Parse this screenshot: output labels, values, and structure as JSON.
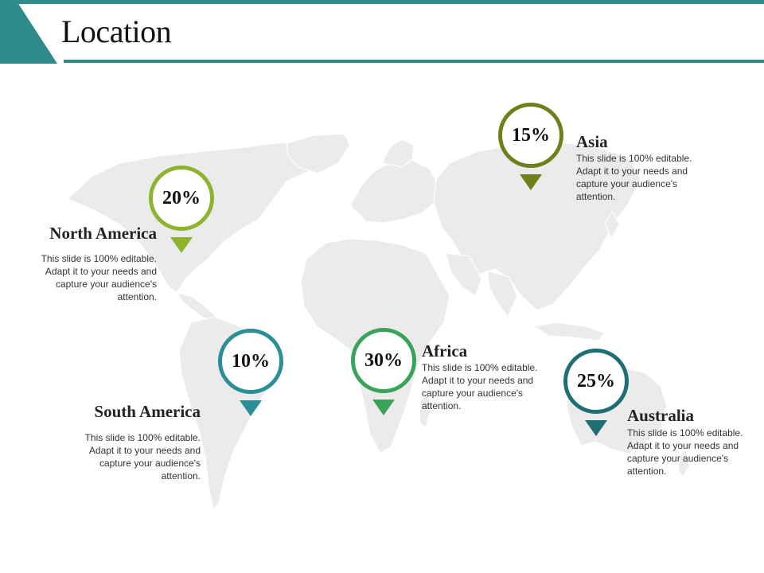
{
  "title": "Location",
  "colors": {
    "accent": "#2e8b8b",
    "north_america": "#8db32f",
    "asia": "#6f7f1a",
    "south_america": "#2a8f96",
    "africa": "#3aa35a",
    "australia": "#1e6e73",
    "map_land": "#ebebeb",
    "map_border": "#ffffff"
  },
  "regions": [
    {
      "id": "north_america",
      "name": "North America",
      "percent": "20%",
      "description": "This slide is 100% editable. Adapt it to your needs and capture your audience's attention."
    },
    {
      "id": "south_america",
      "name": "South America",
      "percent": "10%",
      "description": "This slide is 100% editable. Adapt it to your needs and capture your audience's attention."
    },
    {
      "id": "africa",
      "name": "Africa",
      "percent": "30%",
      "description": "This slide is 100% editable. Adapt it to your needs and capture your audience's attention."
    },
    {
      "id": "asia",
      "name": "Asia",
      "percent": "15%",
      "description": "This slide is 100% editable. Adapt it to your needs and capture your audience's attention."
    },
    {
      "id": "australia",
      "name": "Australia",
      "percent": "25%",
      "description": "This slide is 100% editable. Adapt it to your needs and capture your audience's attention."
    }
  ]
}
